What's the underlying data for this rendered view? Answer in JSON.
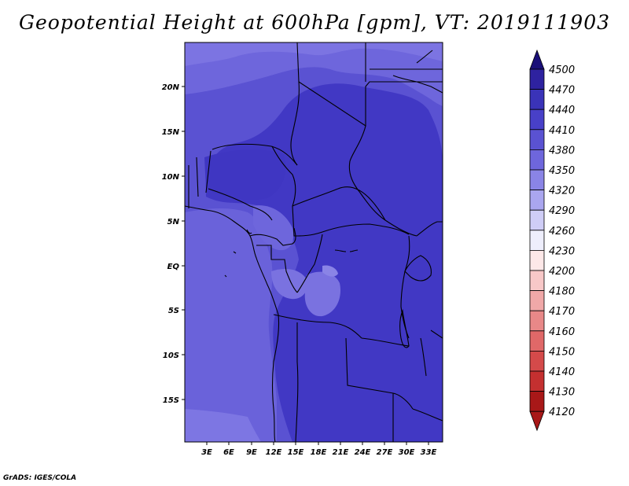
{
  "title": "Geopotential Height at 600hPa [gpm], VT: 2019111903",
  "credit": "GrADS: IGES/COLA",
  "map": {
    "lat_labels": [
      "20N",
      "15N",
      "10N",
      "5N",
      "EQ",
      "5S",
      "10S",
      "15S"
    ],
    "lon_labels": [
      "3E",
      "6E",
      "9E",
      "12E",
      "15E",
      "18E",
      "21E",
      "24E",
      "27E",
      "30E",
      "33E"
    ]
  },
  "colorbar": {
    "levels": [
      "4500",
      "4470",
      "4440",
      "4410",
      "4380",
      "4350",
      "4320",
      "4290",
      "4260",
      "4230",
      "4200",
      "4180",
      "4170",
      "4160",
      "4150",
      "4140",
      "4130",
      "4120"
    ],
    "colors": [
      "#1a0f78",
      "#2e22a0",
      "#3a33b8",
      "#4840c8",
      "#5a52d2",
      "#6e66dc",
      "#8a84e6",
      "#aaa6ef",
      "#cfcdf6",
      "#eeeefc",
      "#fde8e8",
      "#f8c8c8",
      "#f0a8a8",
      "#e88888",
      "#e06868",
      "#d44a4a",
      "#c43030",
      "#a81818"
    ]
  },
  "colors": {
    "band_4440": "#4138c4",
    "band_4410": "#5a52d2",
    "band_4380": "#6e66dc",
    "band_4350": "#8a84e6",
    "coastline": "#000000"
  }
}
